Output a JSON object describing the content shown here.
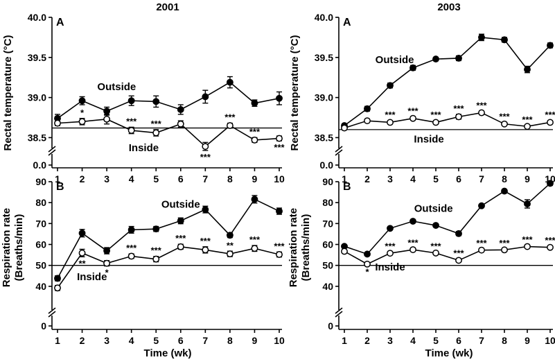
{
  "columns": [
    {
      "title": "2001"
    },
    {
      "title": "2003"
    }
  ],
  "common": {
    "xlabel": "Time (wk)",
    "x_ticks": [
      1,
      2,
      3,
      4,
      5,
      6,
      7,
      8,
      9,
      10
    ],
    "temp_ylabel": "Rectal temperature (°C)",
    "resp_ylabel_line1": "Respiration rate",
    "resp_ylabel_line2": "(Breaths/min)"
  },
  "chart_data": [
    {
      "type": "line",
      "panel_label": "A",
      "year": "2001",
      "ylabel": "Rectal temperature (°C)",
      "ylim": [
        38.4,
        40.0
      ],
      "y_ticks": [
        "0.0",
        "38.5",
        "39.0",
        "39.5",
        "40.0"
      ],
      "y_axis_break": true,
      "reference_line": 38.62,
      "x": [
        1,
        2,
        3,
        4,
        5,
        6,
        7,
        8,
        9,
        10
      ],
      "series": [
        {
          "name": "Outside",
          "marker": "filled",
          "values": [
            38.74,
            38.96,
            38.83,
            38.96,
            38.95,
            38.85,
            39.01,
            39.19,
            38.93,
            38.99
          ],
          "errors": [
            0.05,
            0.05,
            0.05,
            0.06,
            0.07,
            0.06,
            0.08,
            0.07,
            0.04,
            0.08
          ]
        },
        {
          "name": "Inside",
          "marker": "open",
          "values": [
            38.68,
            38.7,
            38.73,
            38.59,
            38.56,
            38.67,
            38.39,
            38.65,
            38.47,
            38.49
          ],
          "errors": [
            0.03,
            0.04,
            0.06,
            0.04,
            0.04,
            0.04,
            0.05,
            0.03,
            0.03,
            0.03
          ]
        }
      ],
      "annotations": [
        {
          "x": 2,
          "text": "*",
          "position": "between"
        },
        {
          "x": 4,
          "text": "***",
          "position": "between"
        },
        {
          "x": 5,
          "text": "***",
          "position": "between"
        },
        {
          "x": 7,
          "text": "***",
          "position": "below"
        },
        {
          "x": 8,
          "text": "***",
          "position": "between"
        },
        {
          "x": 9,
          "text": "***",
          "position": "between"
        },
        {
          "x": 10,
          "text": "***",
          "position": "below"
        }
      ]
    },
    {
      "type": "line",
      "panel_label": "A",
      "year": "2003",
      "ylabel": "Rectal temperature (°C)",
      "ylim": [
        38.4,
        40.0
      ],
      "y_ticks": [
        "0.0",
        "38.5",
        "39.0",
        "39.5",
        "40.0"
      ],
      "y_axis_break": true,
      "reference_line": 38.6,
      "x": [
        1,
        2,
        3,
        4,
        5,
        6,
        7,
        8,
        9,
        10
      ],
      "series": [
        {
          "name": "Outside",
          "marker": "filled",
          "values": [
            38.65,
            38.86,
            39.15,
            39.37,
            39.48,
            39.49,
            39.75,
            39.72,
            39.35,
            39.65
          ],
          "errors": [
            0.02,
            0.03,
            0.03,
            0.03,
            0.02,
            0.03,
            0.04,
            0.03,
            0.04,
            0.03
          ]
        },
        {
          "name": "Inside",
          "marker": "open",
          "values": [
            38.62,
            38.71,
            38.69,
            38.74,
            38.69,
            38.76,
            38.81,
            38.67,
            38.64,
            38.69
          ],
          "errors": [
            0.01,
            0.02,
            0.02,
            0.02,
            0.02,
            0.03,
            0.02,
            0.02,
            0.01,
            0.02
          ]
        }
      ],
      "annotations": [
        {
          "x": 3,
          "text": "***",
          "position": "between"
        },
        {
          "x": 4,
          "text": "***",
          "position": "between"
        },
        {
          "x": 5,
          "text": "***",
          "position": "between"
        },
        {
          "x": 6,
          "text": "***",
          "position": "between"
        },
        {
          "x": 7,
          "text": "***",
          "position": "between"
        },
        {
          "x": 8,
          "text": "***",
          "position": "between"
        },
        {
          "x": 9,
          "text": "***",
          "position": "between"
        },
        {
          "x": 10,
          "text": "***",
          "position": "between"
        }
      ]
    },
    {
      "type": "line",
      "panel_label": "B",
      "year": "2001",
      "ylabel": "Respiration rate (Breaths/min)",
      "ylim": [
        30,
        90
      ],
      "y_ticks": [
        "0",
        "40",
        "50",
        "60",
        "70",
        "80",
        "90"
      ],
      "y_axis_break": true,
      "reference_line": 50,
      "x": [
        1,
        2,
        3,
        4,
        5,
        6,
        7,
        8,
        9,
        10
      ],
      "series": [
        {
          "name": "Outside",
          "marker": "filled",
          "values": [
            43.8,
            65.4,
            57.0,
            67.0,
            67.4,
            71.3,
            76.7,
            64.4,
            81.6,
            75.9
          ],
          "errors": [
            1.2,
            1.8,
            1.5,
            1.6,
            1.2,
            1.4,
            1.6,
            1.1,
            1.8,
            1.5
          ]
        },
        {
          "name": "Inside",
          "marker": "open",
          "values": [
            39.2,
            55.9,
            51.0,
            54.4,
            53.0,
            58.9,
            57.4,
            55.5,
            58.1,
            55.2
          ],
          "errors": [
            1.2,
            1.8,
            1.3,
            1.1,
            1.3,
            1.2,
            1.5,
            1.3,
            1.4,
            1.2
          ]
        }
      ],
      "annotations": [
        {
          "x": 2,
          "text": "**",
          "position": "below"
        },
        {
          "x": 3,
          "text": "*",
          "position": "below"
        },
        {
          "x": 4,
          "text": "***",
          "position": "between"
        },
        {
          "x": 5,
          "text": "***",
          "position": "between"
        },
        {
          "x": 6,
          "text": "***",
          "position": "between"
        },
        {
          "x": 7,
          "text": "***",
          "position": "between"
        },
        {
          "x": 8,
          "text": "**",
          "position": "between"
        },
        {
          "x": 9,
          "text": "***",
          "position": "between"
        },
        {
          "x": 10,
          "text": "***",
          "position": "between"
        }
      ]
    },
    {
      "type": "line",
      "panel_label": "B",
      "year": "2003",
      "ylabel": "Respiration rate (Breaths/min)",
      "ylim": [
        30,
        90
      ],
      "y_ticks": [
        "0",
        "40",
        "50",
        "60",
        "70",
        "80",
        "90"
      ],
      "y_axis_break": true,
      "reference_line": 50,
      "x": [
        1,
        2,
        3,
        4,
        5,
        6,
        7,
        8,
        9,
        10
      ],
      "series": [
        {
          "name": "Outside",
          "marker": "filled",
          "values": [
            59.1,
            55.4,
            67.7,
            71.1,
            69.1,
            65.2,
            78.5,
            85.5,
            79.4,
            89.2
          ],
          "errors": [
            0.6,
            0.6,
            0.6,
            0.6,
            0.6,
            1.0,
            0.6,
            0.8,
            2.0,
            1.0
          ]
        },
        {
          "name": "Inside",
          "marker": "open",
          "values": [
            56.7,
            50.6,
            55.8,
            57.5,
            55.9,
            52.4,
            57.3,
            57.4,
            59.0,
            58.6
          ],
          "errors": [
            0.5,
            0.5,
            0.5,
            0.5,
            0.5,
            0.6,
            0.5,
            0.5,
            0.5,
            0.5
          ]
        }
      ],
      "annotations": [
        {
          "x": 2,
          "text": "*",
          "position": "below"
        },
        {
          "x": 3,
          "text": "***",
          "position": "between"
        },
        {
          "x": 4,
          "text": "***",
          "position": "between"
        },
        {
          "x": 5,
          "text": "***",
          "position": "between"
        },
        {
          "x": 6,
          "text": "***",
          "position": "between"
        },
        {
          "x": 7,
          "text": "***",
          "position": "between"
        },
        {
          "x": 8,
          "text": "***",
          "position": "between"
        },
        {
          "x": 9,
          "text": "***",
          "position": "between"
        },
        {
          "x": 10,
          "text": "***",
          "position": "between"
        }
      ]
    }
  ]
}
